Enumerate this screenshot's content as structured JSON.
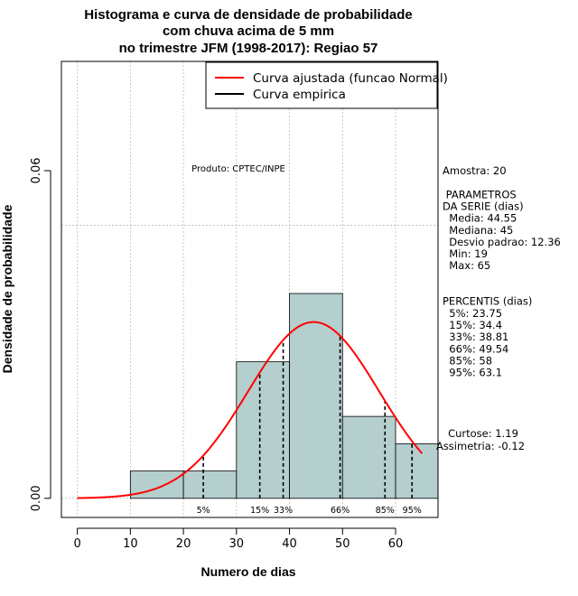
{
  "chart_data": {
    "type": "bar",
    "title_lines": [
      "Histograma e curva de densidade de probabilidade",
      "com chuva acima de 5 mm",
      "no trimestre JFM (1998-2017): Regiao 57"
    ],
    "xlabel": "Numero de dias",
    "ylabel": "Densidade de probabilidade",
    "xlim": [
      -3,
      68
    ],
    "ylim": [
      -0.0035,
      0.08
    ],
    "x_ticks": [
      0,
      10,
      20,
      30,
      40,
      50,
      60
    ],
    "x_tick_labels": [
      "0",
      "10",
      "20",
      "30",
      "40",
      "50",
      "60"
    ],
    "y_ticks": [
      0.0,
      0.06
    ],
    "y_tick_labels": [
      "0.00",
      "0.06"
    ],
    "grid": true,
    "grid_x": [
      0,
      10,
      20,
      30,
      40,
      50,
      60
    ],
    "grid_y": [
      0.0,
      0.05
    ],
    "bins": [
      {
        "start": 10,
        "end": 20,
        "density": 0.005
      },
      {
        "start": 20,
        "end": 30,
        "density": 0.005
      },
      {
        "start": 30,
        "end": 40,
        "density": 0.025
      },
      {
        "start": 40,
        "end": 50,
        "density": 0.0375
      },
      {
        "start": 50,
        "end": 60,
        "density": 0.015
      },
      {
        "start": 60,
        "end": 70,
        "density": 0.01
      }
    ],
    "fitted_curve": {
      "name": "Curva ajustada (funcao Normal)",
      "distribution": "normal",
      "mean": 44.55,
      "sd": 12.36,
      "x_range": [
        0,
        65
      ],
      "color": "#ff0000"
    },
    "empirical_curve": {
      "name": "Curva empirica",
      "color": "#000000"
    },
    "percentile_markers": [
      {
        "label": "5%",
        "x": 23.75
      },
      {
        "label": "15%",
        "x": 34.4
      },
      {
        "label": "33%",
        "x": 38.81
      },
      {
        "label": "66%",
        "x": 49.54
      },
      {
        "label": "85%",
        "x": 58
      },
      {
        "label": "95%",
        "x": 63.1
      }
    ],
    "legend_position": "top-right",
    "colors": {
      "bar_fill": "#b5cece",
      "curve": "#ff0000",
      "grid": "#bbbbbb"
    }
  },
  "annotations": {
    "product": "Produto: CPTEC/INPE",
    "side_lines": [
      "Amostra: 20",
      "",
      " PARAMETROS",
      "DA SERIE (dias)",
      "  Media: 44.55",
      "  Mediana: 45",
      "  Desvio padrao: 12.36",
      "  Min: 19",
      "  Max: 65",
      "",
      "",
      "PERCENTIS (dias)",
      "  5%: 23.75",
      "  15%: 34.4",
      "  33%: 38.81",
      "  66%: 49.54",
      "  85%: 58",
      "  95%: 63.1"
    ],
    "shape_lines": [
      "Curtose: 1.19",
      "Assimetria: -0.12"
    ]
  }
}
